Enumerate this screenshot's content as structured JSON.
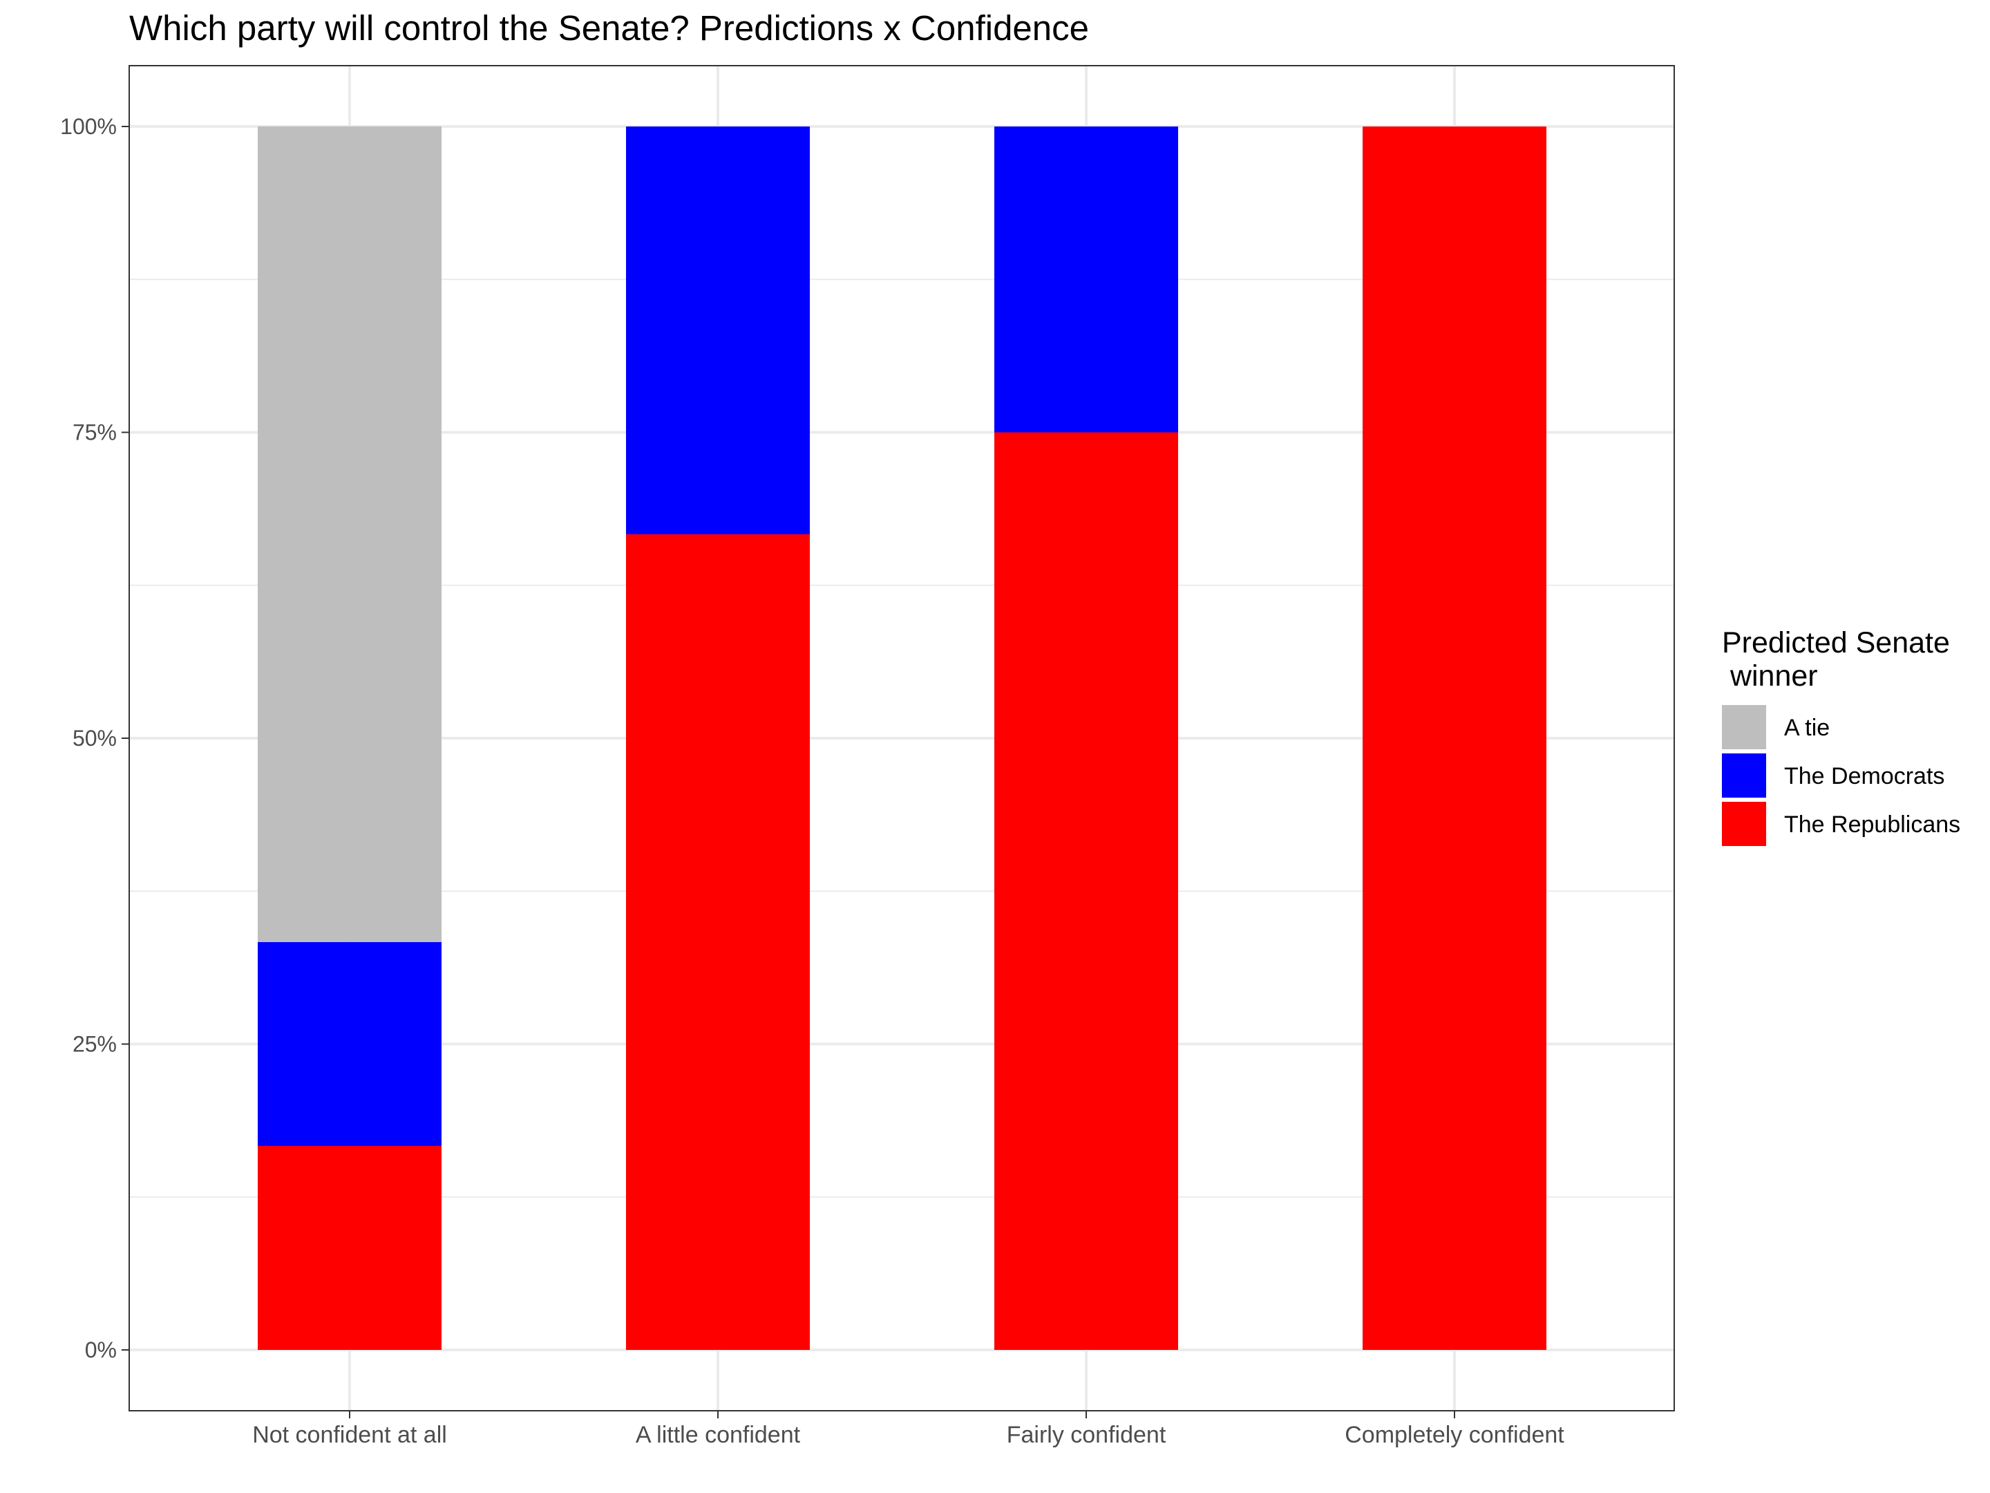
{
  "chart_data": {
    "type": "bar",
    "stacked": true,
    "title": "Which party will control the Senate? Predictions x Confidence",
    "xlabel": "",
    "ylabel": "",
    "categories": [
      "Not confident at all",
      "A little confident",
      "Fairly confident",
      "Completely confident"
    ],
    "series": [
      {
        "name": "The Republicans",
        "color": "#ff0000",
        "values": [
          16.67,
          66.67,
          75,
          100
        ]
      },
      {
        "name": "The Democrats",
        "color": "#0000ff",
        "values": [
          16.67,
          33.33,
          25,
          0
        ]
      },
      {
        "name": "A tie",
        "color": "#bebebe",
        "values": [
          66.67,
          0,
          0,
          0
        ]
      }
    ],
    "ylim": [
      0,
      100
    ],
    "yticks": [
      "0%",
      "25%",
      "50%",
      "75%",
      "100%"
    ],
    "grid": true,
    "legend": {
      "title_line1": "Predicted Senate",
      "title_line2": " winner",
      "placement": "right",
      "items": [
        {
          "label": "A tie",
          "color": "#bebebe"
        },
        {
          "label": "The Democrats",
          "color": "#0000ff"
        },
        {
          "label": "The Republicans",
          "color": "#ff0000"
        }
      ]
    }
  }
}
